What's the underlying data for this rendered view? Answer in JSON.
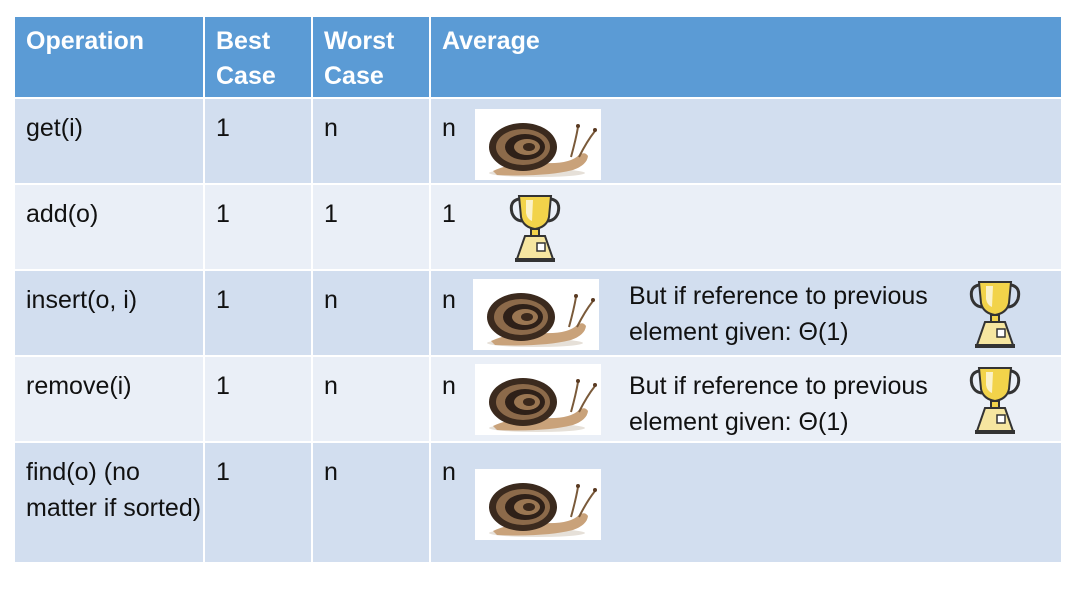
{
  "headers": {
    "operation": "Operation",
    "best_case": "Best Case",
    "worst_case": "Worst Case",
    "average": "Average"
  },
  "rows": [
    {
      "operation": "get(i)",
      "best": "1",
      "worst": "n",
      "average": "n",
      "avg_icon": "snail-icon",
      "note": ""
    },
    {
      "operation": "add(o)",
      "best": "1",
      "worst": "1",
      "average": "1",
      "avg_icon": "trophy-icon",
      "note": ""
    },
    {
      "operation": "insert(o, i)",
      "best": "1",
      "worst": "n",
      "average": "n",
      "avg_icon": "snail-icon",
      "note": "But if reference to previous element given: Θ(1)",
      "note_icon": "trophy-icon"
    },
    {
      "operation": "remove(i)",
      "best": "1",
      "worst": "n",
      "average": "n",
      "avg_icon": "snail-icon",
      "note": "But if reference to previous element given: Θ(1)",
      "note_icon": "trophy-icon"
    },
    {
      "operation": "find(o) (no matter if sorted)",
      "best": "1",
      "worst": "n",
      "average": "n",
      "avg_icon": "snail-icon",
      "note": ""
    }
  ],
  "colors": {
    "header_bg": "#5b9bd5",
    "row_dark": "#d2deef",
    "row_light": "#eaeff7"
  }
}
